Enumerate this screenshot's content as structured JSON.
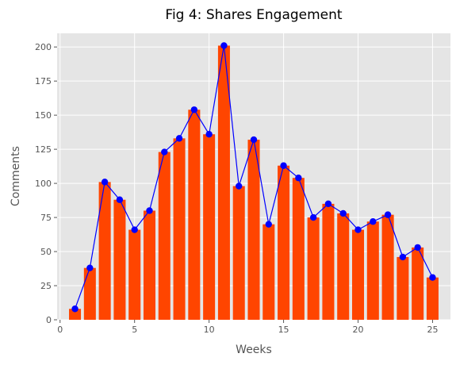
{
  "chart_data": {
    "type": "bar",
    "title": "Fig 4: Shares Engagement",
    "xlabel": "Weeks",
    "ylabel": "Comments",
    "x": [
      1,
      2,
      3,
      4,
      5,
      6,
      7,
      8,
      9,
      10,
      11,
      12,
      13,
      14,
      15,
      16,
      17,
      18,
      19,
      20,
      21,
      22,
      23,
      24,
      25
    ],
    "values": [
      8,
      38,
      101,
      88,
      66,
      80,
      123,
      133,
      154,
      136,
      201,
      98,
      132,
      70,
      113,
      104,
      75,
      85,
      78,
      66,
      72,
      77,
      46,
      53,
      31
    ],
    "xlim": [
      -0.2,
      26.2
    ],
    "ylim": [
      0,
      210
    ],
    "xticks": [
      0,
      5,
      10,
      15,
      20,
      25
    ],
    "yticks": [
      0,
      25,
      50,
      75,
      100,
      125,
      150,
      175,
      200
    ],
    "grid": true,
    "style": "ggplot",
    "colors": {
      "bar": "#ff4500",
      "line": "#0000ff",
      "marker": "#0000ff",
      "plot_background": "#e5e5e5",
      "grid": "#ffffff"
    }
  }
}
